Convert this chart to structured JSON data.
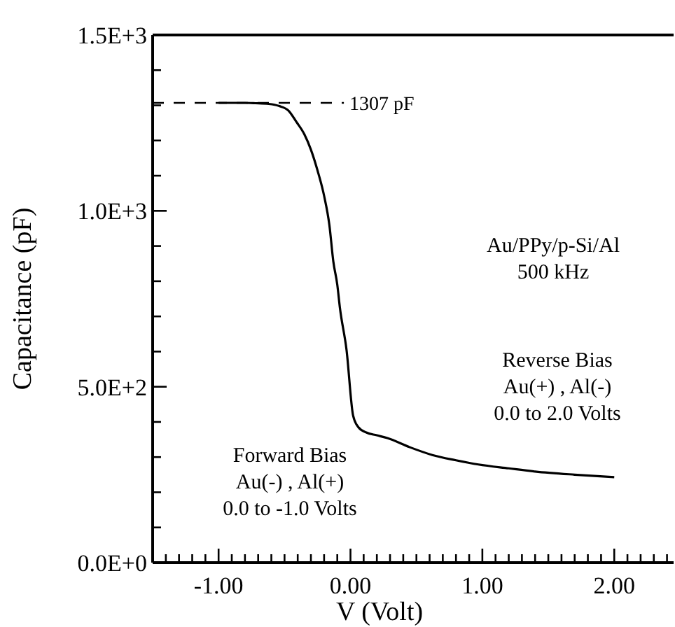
{
  "chart_data": {
    "type": "line",
    "xlabel": "V (Volt)",
    "ylabel": "Capacitance (pF)",
    "x": [
      -1.0,
      -0.8,
      -0.72,
      -0.62,
      -0.54,
      -0.47,
      -0.41,
      -0.35,
      -0.3,
      -0.25,
      -0.2,
      -0.16,
      -0.13,
      -0.1,
      -0.08,
      -0.03,
      0.02,
      0.06,
      0.12,
      0.2,
      0.28,
      0.45,
      0.62,
      0.8,
      0.97,
      1.2,
      1.4,
      1.7,
      2.0
    ],
    "series": [
      {
        "color": "#000000",
        "values": [
          1307,
          1307,
          1306,
          1304,
          1298,
          1285,
          1253,
          1218,
          1174,
          1115,
          1043,
          960,
          856,
          790,
          724,
          605,
          418,
          385,
          370,
          362,
          354,
          328,
          306,
          291,
          279,
          268,
          259,
          250,
          243
        ]
      }
    ],
    "xlim": [
      -1.5,
      2.45
    ],
    "ylim": [
      0,
      1500
    ],
    "xticks": [
      {
        "value": -1.5,
        "label": null
      },
      {
        "value": -1.4,
        "label": null
      },
      {
        "value": -1.3,
        "label": null
      },
      {
        "value": -1.2,
        "label": null
      },
      {
        "value": -1.1,
        "label": null
      },
      {
        "value": -1,
        "label": "-1.00"
      },
      {
        "value": -0.9,
        "label": null
      },
      {
        "value": -0.8,
        "label": null
      },
      {
        "value": -0.7,
        "label": null
      },
      {
        "value": -0.6,
        "label": null
      },
      {
        "value": -0.5,
        "label": null
      },
      {
        "value": -0.4,
        "label": null
      },
      {
        "value": -0.3,
        "label": null
      },
      {
        "value": -0.2,
        "label": null
      },
      {
        "value": -0.1,
        "label": null
      },
      {
        "value": 0,
        "label": "0.00"
      },
      {
        "value": 0.1,
        "label": null
      },
      {
        "value": 0.2,
        "label": null
      },
      {
        "value": 0.3,
        "label": null
      },
      {
        "value": 0.4,
        "label": null
      },
      {
        "value": 0.5,
        "label": null
      },
      {
        "value": 0.6,
        "label": null
      },
      {
        "value": 0.7,
        "label": null
      },
      {
        "value": 0.8,
        "label": null
      },
      {
        "value": 0.9,
        "label": null
      },
      {
        "value": 1,
        "label": "1.00"
      },
      {
        "value": 1.1,
        "label": null
      },
      {
        "value": 1.2,
        "label": null
      },
      {
        "value": 1.3,
        "label": null
      },
      {
        "value": 1.4,
        "label": null
      },
      {
        "value": 1.5,
        "label": null
      },
      {
        "value": 1.6,
        "label": null
      },
      {
        "value": 1.7,
        "label": null
      },
      {
        "value": 1.8,
        "label": null
      },
      {
        "value": 1.9,
        "label": null
      },
      {
        "value": 2,
        "label": "2.00"
      },
      {
        "value": 2.1,
        "label": null
      },
      {
        "value": 2.2,
        "label": null
      },
      {
        "value": 2.3,
        "label": null
      },
      {
        "value": 2.4,
        "label": null
      }
    ],
    "yticks": [
      {
        "value": 0,
        "label": "0.0E+0"
      },
      {
        "value": 100,
        "label": null
      },
      {
        "value": 200,
        "label": null
      },
      {
        "value": 300,
        "label": null
      },
      {
        "value": 400,
        "label": null
      },
      {
        "value": 500,
        "label": "5.0E+2"
      },
      {
        "value": 600,
        "label": null
      },
      {
        "value": 700,
        "label": null
      },
      {
        "value": 800,
        "label": null
      },
      {
        "value": 900,
        "label": null
      },
      {
        "value": 1000,
        "label": "1.0E+3"
      },
      {
        "value": 1100,
        "label": null
      },
      {
        "value": 1200,
        "label": null
      },
      {
        "value": 1300,
        "label": null
      },
      {
        "value": 1400,
        "label": null
      },
      {
        "value": 1500,
        "label": "1.5E+3"
      }
    ],
    "ref_lines": [
      {
        "axis": "y",
        "value": 1307,
        "label": "1307 pF",
        "line_style": "dashed",
        "color": "#000000"
      }
    ],
    "annotations": [
      "Au/PPy/p-Si/Al\n500 kHz",
      "Reverse Bias\nAu(+) , Al(-)\n0.0 to 2.0 Volts",
      "Forward Bias\nAu(-) , Al(+)\n0.0 to -1.0 Volts"
    ],
    "marker": "none",
    "line_style": "solid"
  }
}
